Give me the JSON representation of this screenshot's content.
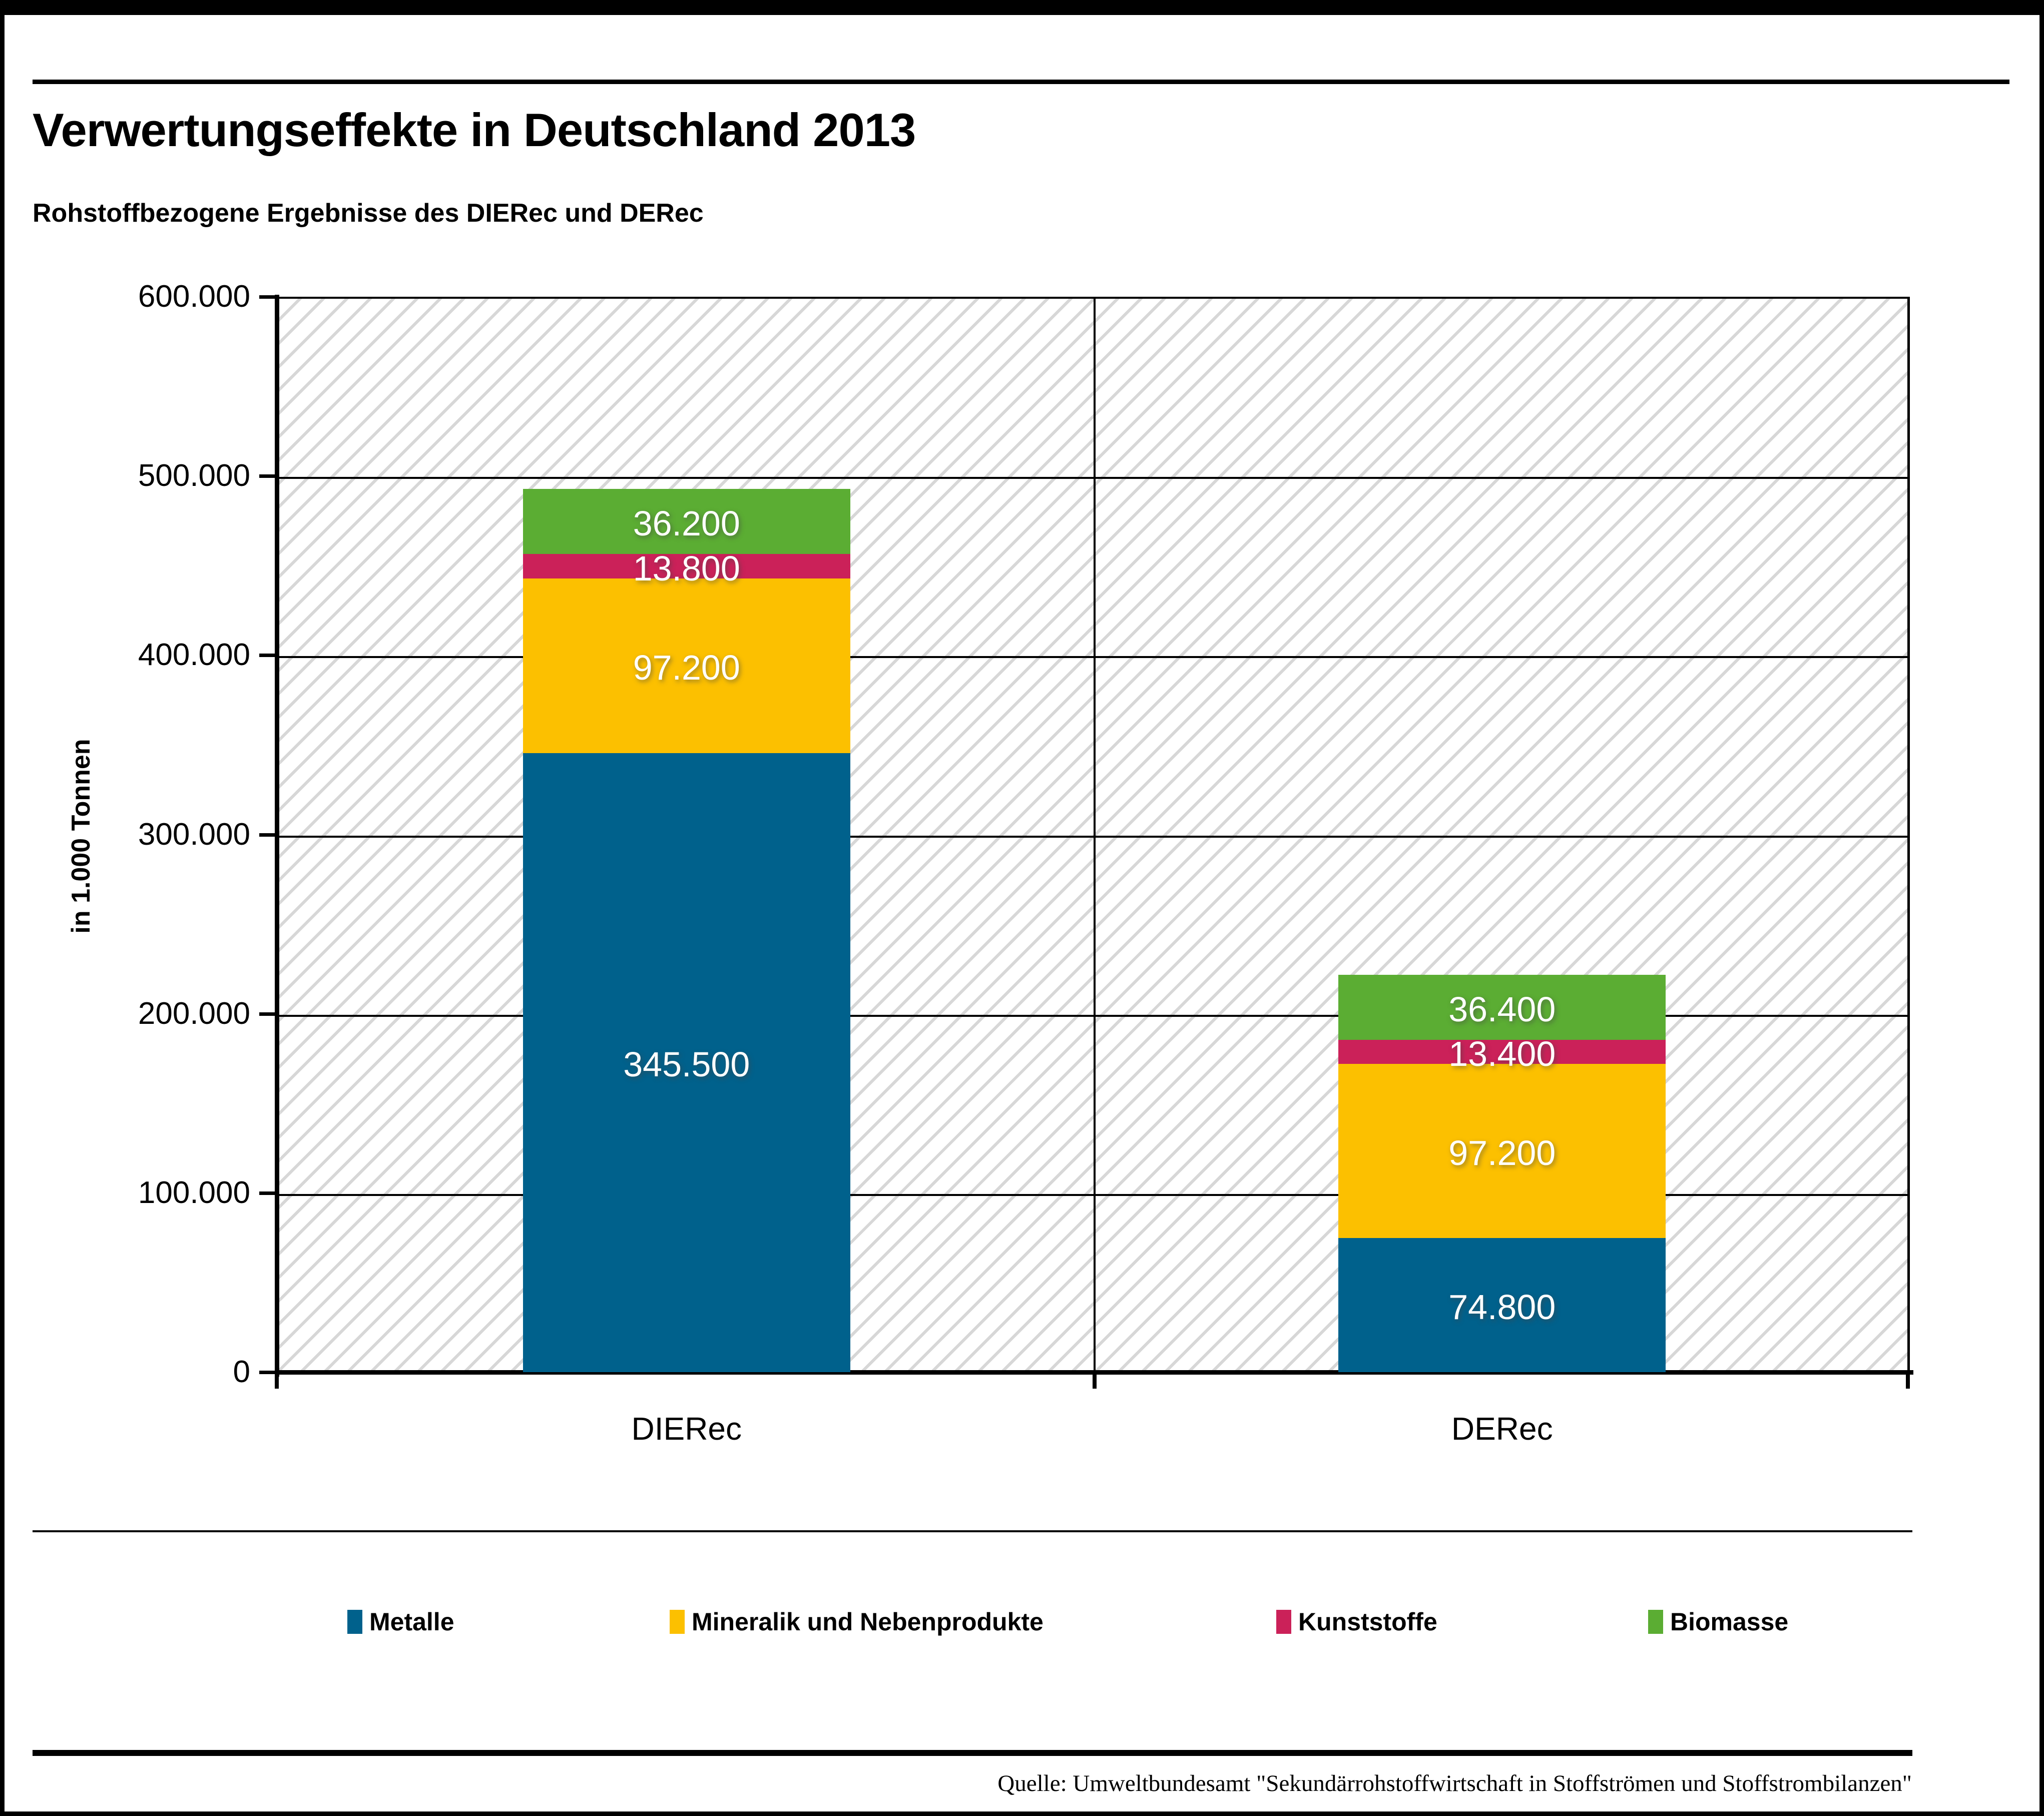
{
  "header": {
    "title": "Verwertungseffekte in Deutschland 2013",
    "subtitle": "Rohstoffbezogene Ergebnisse des DIERec und DERec"
  },
  "chart_data": {
    "type": "bar",
    "stacked": true,
    "categories": [
      "DIERec",
      "DERec"
    ],
    "series": [
      {
        "name": "Metalle",
        "color": "#00618c",
        "values": [
          345500,
          74800
        ],
        "labels": [
          "345.500",
          "74.800"
        ]
      },
      {
        "name": "Mineralik und Nebenprodukte",
        "color": "#fcc000",
        "values": [
          97200,
          97200
        ],
        "labels": [
          "97.200",
          "97.200"
        ]
      },
      {
        "name": "Kunststoffe",
        "color": "#cb2159",
        "values": [
          13800,
          13400
        ],
        "labels": [
          "13.800",
          "13.400"
        ]
      },
      {
        "name": "Biomasse",
        "color": "#5bad33",
        "values": [
          36200,
          36400
        ],
        "labels": [
          "36.200",
          "36.400"
        ]
      }
    ],
    "totals": [
      492700,
      221800
    ],
    "ylabel": "in 1.000 Tonnen",
    "ylim": [
      0,
      600000
    ],
    "yticks": [
      {
        "value": 0,
        "label": "0"
      },
      {
        "value": 100000,
        "label": "100.000"
      },
      {
        "value": 200000,
        "label": "200.000"
      },
      {
        "value": 300000,
        "label": "300.000"
      },
      {
        "value": 400000,
        "label": "400.000"
      },
      {
        "value": 500000,
        "label": "500.000"
      },
      {
        "value": 600000,
        "label": "600.000"
      }
    ],
    "grid": "horizontal",
    "plot_background": "diagonal-hatch",
    "hatch_color": "#d7d7d7",
    "legend_position": "bottom"
  },
  "source": "Quelle: Umweltbundesamt \"Sekundärrohstoffwirtschaft in Stoffströmen und Stoffstrombilanzen\""
}
